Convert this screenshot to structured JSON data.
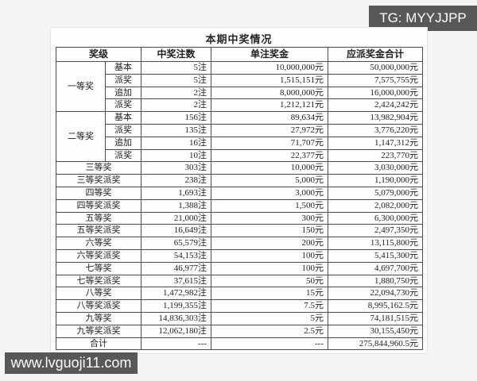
{
  "badges": {
    "telegram": "TG: MYYJJPP",
    "website": "www.lvguoji11.com",
    "badge_bg": "#58585a",
    "badge_text_color": "#ffffff"
  },
  "table": {
    "title": "本期中奖情况",
    "columns": [
      "奖级",
      "中奖注数",
      "单注奖金",
      "应派奖金合计"
    ],
    "groups": [
      {
        "name": "一等奖",
        "rows": [
          {
            "sub": "基本",
            "count": "5注",
            "per_bet": "10,000,000元",
            "total": "50,000,000元"
          },
          {
            "sub": "派奖",
            "count": "5注",
            "per_bet": "1,515,151元",
            "total": "7,575,755元"
          },
          {
            "sub": "追加",
            "count": "2注",
            "per_bet": "8,000,000元",
            "total": "16,000,000元"
          },
          {
            "sub": "派奖",
            "count": "2注",
            "per_bet": "1,212,121元",
            "total": "2,424,242元"
          }
        ]
      },
      {
        "name": "二等奖",
        "rows": [
          {
            "sub": "基本",
            "count": "156注",
            "per_bet": "89,634元",
            "total": "13,982,904元"
          },
          {
            "sub": "派奖",
            "count": "135注",
            "per_bet": "27,972元",
            "total": "3,776,220元"
          },
          {
            "sub": "追加",
            "count": "16注",
            "per_bet": "71,707元",
            "total": "1,147,312元"
          },
          {
            "sub": "派奖",
            "count": "10注",
            "per_bet": "22,377元",
            "total": "223,770元"
          }
        ]
      }
    ],
    "rows": [
      {
        "level": "三等奖",
        "count": "303注",
        "per_bet": "10,000元",
        "total": "3,030,000元"
      },
      {
        "level": "三等奖派奖",
        "count": "238注",
        "per_bet": "5,000元",
        "total": "1,190,000元"
      },
      {
        "level": "四等奖",
        "count": "1,693注",
        "per_bet": "3,000元",
        "total": "5,079,000元"
      },
      {
        "level": "四等奖派奖",
        "count": "1,388注",
        "per_bet": "1,500元",
        "total": "2,082,000元"
      },
      {
        "level": "五等奖",
        "count": "21,000注",
        "per_bet": "300元",
        "total": "6,300,000元"
      },
      {
        "level": "五等奖派奖",
        "count": "16,649注",
        "per_bet": "150元",
        "total": "2,497,350元"
      },
      {
        "level": "六等奖",
        "count": "65,579注",
        "per_bet": "200元",
        "total": "13,115,800元"
      },
      {
        "level": "六等奖派奖",
        "count": "54,153注",
        "per_bet": "100元",
        "total": "5,415,300元"
      },
      {
        "level": "七等奖",
        "count": "46,977注",
        "per_bet": "100元",
        "total": "4,697,700元"
      },
      {
        "level": "七等奖派奖",
        "count": "37,615注",
        "per_bet": "50元",
        "total": "1,880,750元"
      },
      {
        "level": "八等奖",
        "count": "1,472,982注",
        "per_bet": "15元",
        "total": "22,094,730元"
      },
      {
        "level": "八等奖派奖",
        "count": "1,199,355注",
        "per_bet": "7.5元",
        "total": "8,995,162.5元"
      },
      {
        "level": "九等奖",
        "count": "14,836,303注",
        "per_bet": "5元",
        "total": "74,181,515元"
      },
      {
        "level": "九等奖派奖",
        "count": "12,062,180注",
        "per_bet": "2.5元",
        "total": "30,155,450元"
      }
    ],
    "total_row": {
      "level": "合计",
      "count": "---",
      "per_bet": "---",
      "total": "275,844,960.5元"
    }
  }
}
